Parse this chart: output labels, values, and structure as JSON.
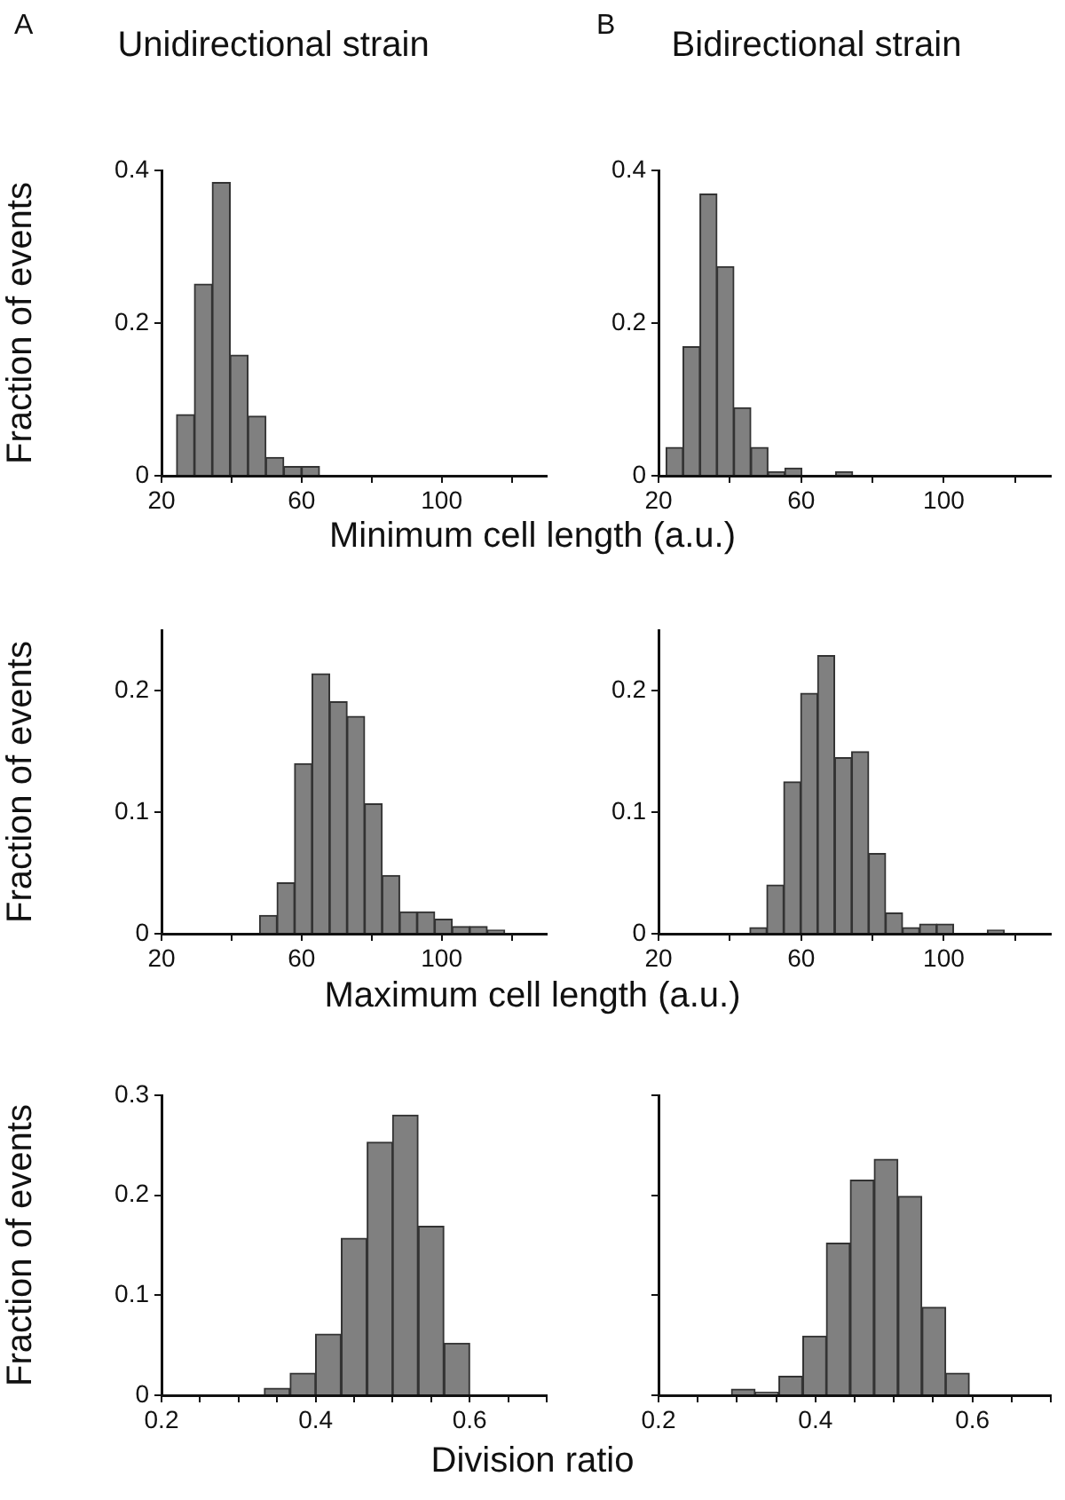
{
  "chart_data": [
    {
      "type": "histogram",
      "title": "Unidirectional strain",
      "ylabel": "Fraction of events",
      "xlabel": "Minimum cell length (a.u.)",
      "annotations": [
        "A"
      ],
      "color": "#808080",
      "grid": false,
      "bins": [
        24.3,
        29.4,
        34.5,
        39.6,
        44.7,
        49.8,
        54.9,
        60,
        65.1
      ],
      "values": [
        0.08,
        0.251,
        0.384,
        0.158,
        0.078,
        0.024,
        0.012,
        0.012
      ],
      "xlim": [
        20,
        130
      ],
      "xticks": [
        20,
        {
          "value": 40,
          "label": null
        },
        60,
        {
          "value": 80,
          "label": null
        },
        100,
        {
          "value": 120,
          "label": null
        }
      ],
      "ylim": [
        0,
        0.4
      ],
      "yticks": [
        0,
        0.2,
        0.4
      ]
    },
    {
      "type": "histogram",
      "title": "Bidirectional strain",
      "annotations": [
        "B"
      ],
      "color": "#808080",
      "grid": false,
      "bins": [
        22.1,
        26.9,
        31.6,
        36.4,
        41.1,
        45.9,
        50.7,
        55.4,
        60.2,
        64.9,
        69.7,
        74.4
      ],
      "values": [
        0.037,
        0.169,
        0.369,
        0.274,
        0.089,
        0.037,
        0.005,
        0.01,
        0,
        0,
        0.005
      ],
      "xlim": [
        20,
        130
      ],
      "xticks": [
        20,
        {
          "value": 40,
          "label": null
        },
        60,
        {
          "value": 80,
          "label": null
        },
        100,
        {
          "value": 120,
          "label": null
        }
      ],
      "ylim": [
        0,
        0.4
      ],
      "yticks": [
        0,
        0.2,
        0.4
      ]
    },
    {
      "type": "histogram",
      "ylabel": "Fraction of events",
      "xlabel": "Maximum cell length (a.u.)",
      "color": "#808080",
      "grid": false,
      "bins": [
        48,
        53,
        58,
        63,
        68,
        73,
        78,
        83,
        88,
        93,
        98,
        103,
        108,
        113,
        118
      ],
      "values": [
        0.015,
        0.042,
        0.14,
        0.214,
        0.191,
        0.179,
        0.107,
        0.048,
        0.018,
        0.018,
        0.012,
        0.006,
        0.006,
        0.003
      ],
      "xlim": [
        20,
        130
      ],
      "xticks": [
        20,
        {
          "value": 40,
          "label": null
        },
        60,
        {
          "value": 80,
          "label": null
        },
        100,
        {
          "value": 120,
          "label": null
        }
      ],
      "ylim": [
        0,
        0.25
      ],
      "yticks": [
        0,
        0.1,
        0.2
      ]
    },
    {
      "type": "histogram",
      "color": "#808080",
      "grid": false,
      "bins": [
        45.6,
        50.4,
        55.1,
        59.9,
        64.6,
        69.4,
        74.2,
        78.9,
        83.7,
        88.4,
        93.2,
        98,
        102.7,
        107.5,
        112.2,
        117
      ],
      "values": [
        0.005,
        0.04,
        0.125,
        0.198,
        0.229,
        0.145,
        0.15,
        0.066,
        0.017,
        0.005,
        0.008,
        0.008,
        0,
        0,
        0.003
      ],
      "xlim": [
        20,
        130
      ],
      "xticks": [
        20,
        {
          "value": 40,
          "label": null
        },
        60,
        {
          "value": 80,
          "label": null
        },
        100,
        {
          "value": 120,
          "label": null
        }
      ],
      "ylim": [
        0,
        0.25
      ],
      "yticks": [
        0,
        0.1,
        0.2
      ]
    },
    {
      "type": "histogram",
      "ylabel": "Fraction of events",
      "xlabel": "Division ratio",
      "color": "#808080",
      "grid": false,
      "bins": [
        0.333,
        0.367,
        0.4,
        0.433,
        0.467,
        0.5,
        0.533,
        0.567,
        0.6
      ],
      "values": [
        0.007,
        0.022,
        0.061,
        0.157,
        0.253,
        0.28,
        0.169,
        0.052
      ],
      "xlim": [
        0.2,
        0.7
      ],
      "xticks": [
        0.2,
        {
          "value": 0.25,
          "label": null
        },
        {
          "value": 0.3,
          "label": null
        },
        {
          "value": 0.35,
          "label": null
        },
        0.4,
        {
          "value": 0.45,
          "label": null
        },
        {
          "value": 0.5,
          "label": null
        },
        {
          "value": 0.55,
          "label": null
        },
        0.6,
        {
          "value": 0.65,
          "label": null
        },
        {
          "value": 0.7,
          "label": null
        }
      ],
      "ylim": [
        0,
        0.3
      ],
      "yticks": [
        0,
        0.1,
        0.2,
        0.3
      ]
    },
    {
      "type": "histogram",
      "color": "#808080",
      "grid": false,
      "tick_labels": "x",
      "bins": [
        0.293,
        0.323,
        0.353,
        0.384,
        0.414,
        0.444,
        0.475,
        0.505,
        0.536,
        0.566,
        0.596
      ],
      "values": [
        0.006,
        0.003,
        0.019,
        0.059,
        0.152,
        0.215,
        0.236,
        0.199,
        0.088,
        0.022
      ],
      "xlim": [
        0.2,
        0.7
      ],
      "xticks": [
        0.2,
        {
          "value": 0.25,
          "label": null
        },
        {
          "value": 0.3,
          "label": null
        },
        {
          "value": 0.35,
          "label": null
        },
        0.4,
        {
          "value": 0.45,
          "label": null
        },
        {
          "value": 0.5,
          "label": null
        },
        {
          "value": 0.55,
          "label": null
        },
        0.6,
        {
          "value": 0.65,
          "label": null
        },
        {
          "value": 0.7,
          "label": null
        }
      ],
      "ylim": [
        0,
        0.3
      ],
      "yticks": [
        0,
        0.1,
        0.2,
        0.3
      ]
    }
  ]
}
